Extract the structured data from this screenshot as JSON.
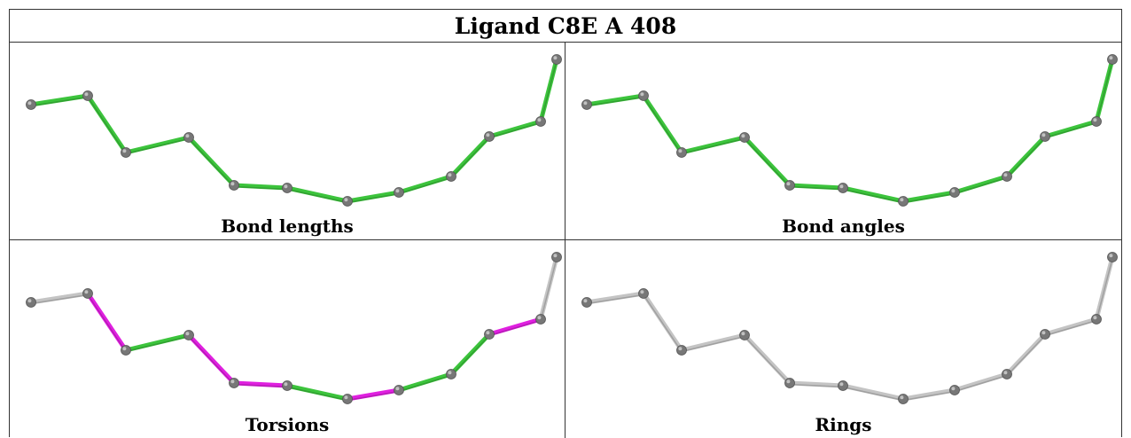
{
  "title": "Ligand C8E A 408",
  "panels": [
    {
      "caption": "Bond lengths",
      "bond_colors": [
        "green",
        "green",
        "green",
        "green",
        "green",
        "green",
        "green",
        "green",
        "green",
        "green",
        "green"
      ]
    },
    {
      "caption": "Bond angles",
      "bond_colors": [
        "green",
        "green",
        "green",
        "green",
        "green",
        "green",
        "green",
        "green",
        "green",
        "green",
        "green"
      ]
    },
    {
      "caption": "Torsions",
      "bond_colors": [
        "gray",
        "magenta",
        "green",
        "magenta",
        "magenta",
        "green",
        "magenta",
        "green",
        "green",
        "magenta",
        "gray"
      ]
    },
    {
      "caption": "Rings",
      "bond_colors": [
        "gray",
        "gray",
        "gray",
        "gray",
        "gray",
        "gray",
        "gray",
        "gray",
        "gray",
        "gray",
        "gray"
      ]
    }
  ],
  "colors": {
    "green": "#3cc43c",
    "magenta": "#e020e0",
    "gray": "#c4c4c4",
    "atom": "#777777"
  }
}
